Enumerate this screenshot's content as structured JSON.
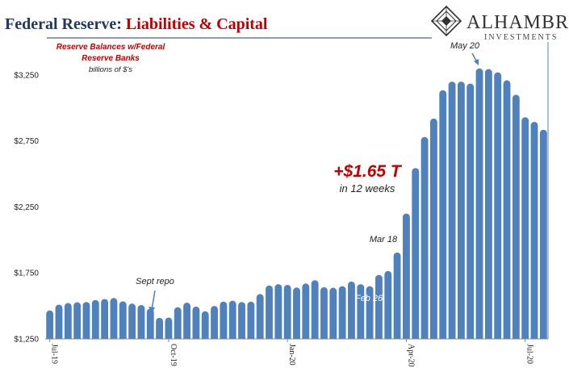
{
  "header": {
    "title_part1": "Federal Reserve: ",
    "title_part2": "Liabilities & Capital"
  },
  "logo": {
    "name": "ALHAMBRA",
    "subtitle": "INVESTMENTS",
    "icon": "alhambra-diamond-logo"
  },
  "colors": {
    "bar": "#4f81bd",
    "title_blue": "#1f3864",
    "accent_red": "#c00000"
  },
  "chart_data": {
    "type": "bar",
    "ylim": [
      1250,
      3500
    ],
    "yticks": [
      1250,
      1750,
      2250,
      2750,
      3250
    ],
    "ytick_labels": [
      "$1,250",
      "$1,750",
      "$2,250",
      "$2,750",
      "$3,250"
    ],
    "xtick_labels": [
      {
        "label": "Jul-19",
        "index": 0
      },
      {
        "label": "Oct-19",
        "index": 13
      },
      {
        "label": "Jan-20",
        "index": 26
      },
      {
        "label": "Apr-20",
        "index": 39
      },
      {
        "label": "Jul-20",
        "index": 52
      }
    ],
    "values": [
      1466,
      1510,
      1522,
      1528,
      1530,
      1545,
      1553,
      1560,
      1535,
      1518,
      1507,
      1480,
      1410,
      1412,
      1490,
      1525,
      1495,
      1460,
      1500,
      1533,
      1540,
      1530,
      1533,
      1590,
      1655,
      1665,
      1660,
      1640,
      1670,
      1695,
      1642,
      1638,
      1650,
      1685,
      1665,
      1650,
      1735,
      1765,
      1905,
      2200,
      2545,
      2780,
      2920,
      3135,
      3200,
      3200,
      3185,
      3300,
      3295,
      3270,
      3210,
      3100,
      2930,
      2895,
      2835
    ],
    "legend_label": "Reserve Balances w/Federal Reserve Banks",
    "units_label": "billions of $'s",
    "annotations": {
      "sept_repo": {
        "text": "Sept repo",
        "index": 12
      },
      "feb26": {
        "text": "Feb 26",
        "index": 35
      },
      "mar18": {
        "text": "Mar 18",
        "index": 38
      },
      "may20": {
        "text": "May 20",
        "index": 47
      },
      "increase": {
        "text": "+$1.65 T",
        "sub": "in 12 weeks"
      }
    }
  }
}
